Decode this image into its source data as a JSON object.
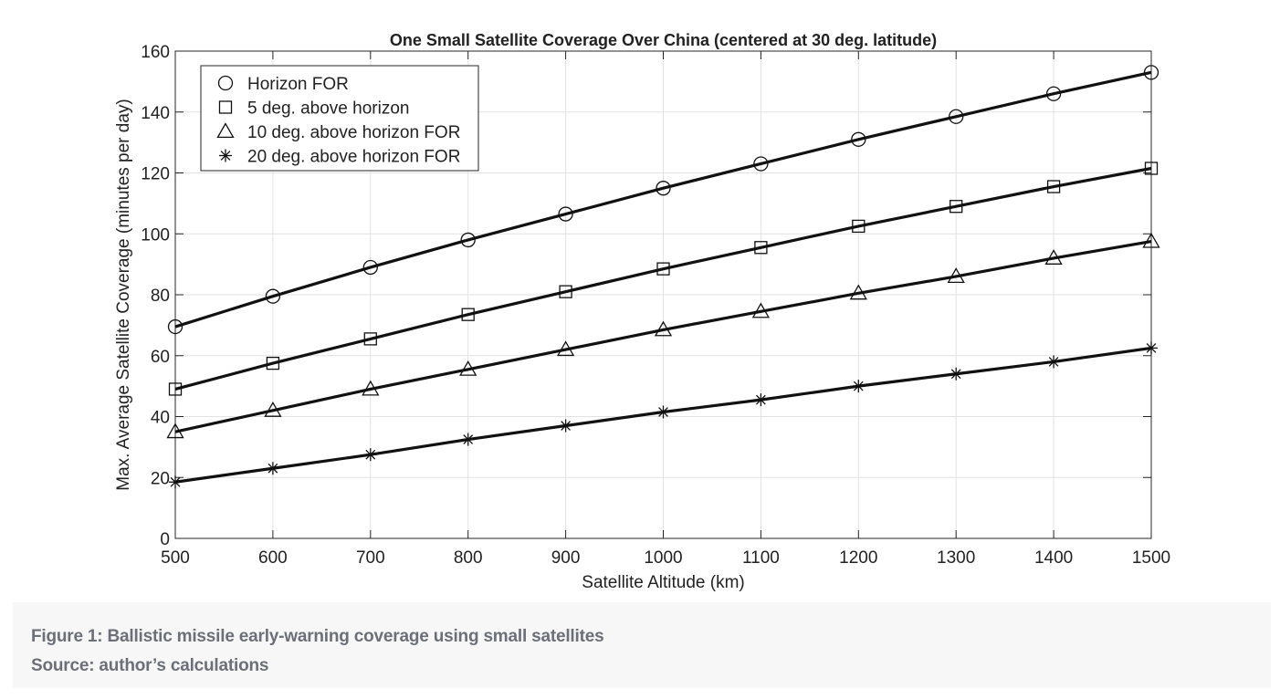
{
  "caption": {
    "figure_label": "Figure 1: Ballistic missile early-warning coverage using small satellites",
    "source_label": "Source: author’s calculations"
  },
  "colors": {
    "line": "#111111",
    "grid": "#e2e2e2",
    "axis": "#262626",
    "caption_text": "#6b6f78",
    "card_bg": "#f8f7f8"
  },
  "chart_data": {
    "type": "line",
    "title": "One Small Satellite Coverage Over China (centered at 30 deg. latitude)",
    "xlabel": "Satellite Altitude (km)",
    "ylabel": "Max. Average Satellite Coverage (minutes per day)",
    "xlim": [
      500,
      1500
    ],
    "ylim": [
      0,
      160
    ],
    "xticks": [
      500,
      600,
      700,
      800,
      900,
      1000,
      1100,
      1200,
      1300,
      1400,
      1500
    ],
    "yticks": [
      0,
      20,
      40,
      60,
      80,
      100,
      120,
      140,
      160
    ],
    "grid": true,
    "legend_position": "top-left",
    "x": [
      500,
      600,
      700,
      800,
      900,
      1000,
      1100,
      1200,
      1300,
      1400,
      1500
    ],
    "series": [
      {
        "name": "Horizon FOR",
        "marker": "circle",
        "values": [
          69.5,
          79.5,
          89,
          98,
          106.5,
          115,
          123,
          131,
          138.5,
          146,
          153
        ]
      },
      {
        "name": "5 deg. above horizon",
        "marker": "square",
        "values": [
          49,
          57.5,
          65.5,
          73.5,
          81,
          88.5,
          95.5,
          102.5,
          109,
          115.5,
          121.5
        ]
      },
      {
        "name": "10 deg. above horizon FOR",
        "marker": "triangle",
        "values": [
          35,
          42,
          49,
          55.5,
          62,
          68.5,
          74.5,
          80.5,
          86,
          92,
          97.5
        ]
      },
      {
        "name": "20 deg. above horizon FOR",
        "marker": "asterisk",
        "values": [
          18.5,
          23,
          27.5,
          32.5,
          37,
          41.5,
          45.5,
          50,
          54,
          58,
          62.5
        ]
      }
    ]
  }
}
